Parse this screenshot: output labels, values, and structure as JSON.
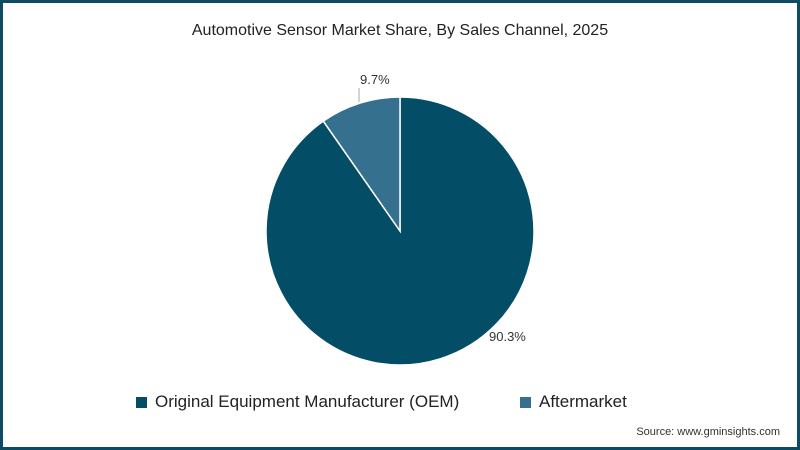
{
  "chart_data": {
    "type": "pie",
    "title": "Automotive Sensor Market Share, By Sales Channel, 2025",
    "categories": [
      "Original Equipment Manufacturer (OEM)",
      "Aftermarket"
    ],
    "values": [
      90.3,
      9.7
    ],
    "labels": [
      "90.3%",
      "9.7%"
    ],
    "colors": [
      "#034e66",
      "#36708f"
    ],
    "legend_position": "bottom"
  },
  "title": "Automotive Sensor Market Share, By Sales Channel, 2025",
  "legend": [
    {
      "label": "Original Equipment Manufacturer (OEM)",
      "color": "#034e66"
    },
    {
      "label": "Aftermarket",
      "color": "#36708f"
    }
  ],
  "source": "Source: www.gminsights.com"
}
